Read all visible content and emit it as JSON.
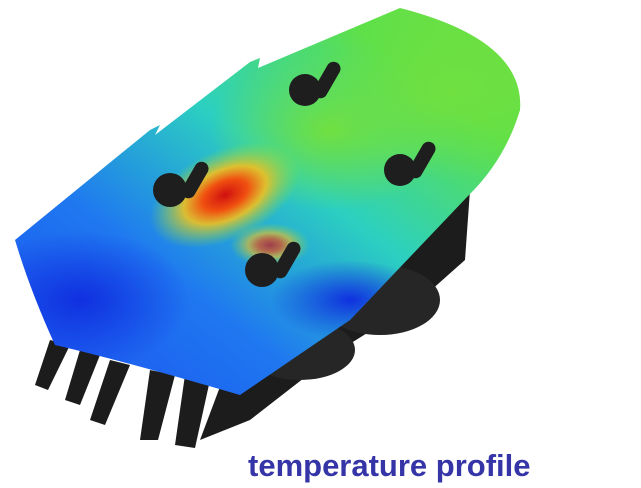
{
  "caption": "temperature profile"
}
